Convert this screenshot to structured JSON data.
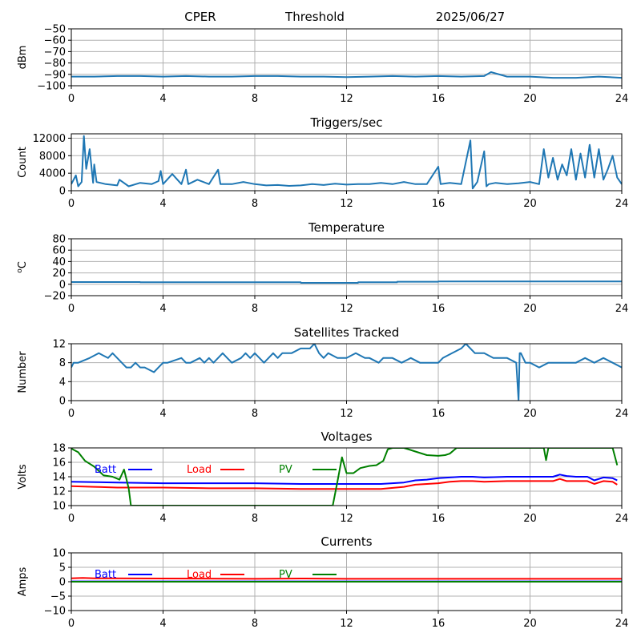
{
  "header": {
    "station": "CPER",
    "mode": "Threshold",
    "date": "2025/06/27"
  },
  "colors": {
    "line": "#1f77b4",
    "batt": "#0000ff",
    "load": "#ff0000",
    "pv": "#008000",
    "grid": "#b0b0b0"
  },
  "chart_data": [
    {
      "type": "line",
      "title": "",
      "ylabel": "dBm",
      "xlim": [
        0,
        24
      ],
      "ylim": [
        -100,
        -50
      ],
      "xticks": [
        0,
        4,
        8,
        12,
        16,
        20,
        24
      ],
      "yticks": [
        -100,
        -90,
        -80,
        -70,
        -60,
        -50
      ],
      "series": [
        {
          "x": [
            0,
            1,
            2,
            3,
            4,
            5,
            6,
            7,
            8,
            9,
            10,
            11,
            12,
            13,
            14,
            15,
            16,
            17,
            18,
            18.3,
            19,
            20,
            21,
            22,
            23,
            24
          ],
          "y": [
            -92,
            -92,
            -91.5,
            -91.5,
            -92,
            -91.5,
            -92,
            -92,
            -91.5,
            -91.5,
            -92,
            -92,
            -92.5,
            -92,
            -91.5,
            -92,
            -91.5,
            -92,
            -91.5,
            -88,
            -92,
            -92,
            -93,
            -93,
            -92,
            -93
          ]
        }
      ]
    },
    {
      "type": "line",
      "title": "Triggers/sec",
      "ylabel": "Count",
      "xlim": [
        0,
        24
      ],
      "ylim": [
        0,
        13000
      ],
      "xticks": [
        0,
        4,
        8,
        12,
        16,
        20,
        24
      ],
      "yticks": [
        0,
        4000,
        8000,
        12000
      ],
      "series": [
        {
          "x": [
            0,
            0.2,
            0.3,
            0.45,
            0.55,
            0.65,
            0.8,
            0.95,
            1.0,
            1.1,
            1.5,
            2.0,
            2.1,
            2.5,
            3.0,
            3.5,
            3.8,
            3.9,
            4.0,
            4.4,
            4.8,
            5.0,
            5.1,
            5.5,
            6.0,
            6.4,
            6.5,
            7.0,
            7.5,
            8.0,
            8.5,
            9.0,
            9.5,
            10.0,
            10.5,
            11.0,
            11.5,
            12.0,
            12.5,
            13.0,
            13.5,
            14.0,
            14.5,
            15.0,
            15.5,
            16.0,
            16.1,
            16.5,
            17.0,
            17.4,
            17.5,
            17.7,
            18.0,
            18.1,
            18.2,
            18.5,
            19.0,
            19.5,
            20.0,
            20.4,
            20.6,
            20.8,
            21.0,
            21.2,
            21.4,
            21.6,
            21.8,
            22.0,
            22.2,
            22.4,
            22.6,
            22.8,
            23.0,
            23.2,
            23.4,
            23.6,
            23.8,
            24.0
          ],
          "y": [
            1500,
            3500,
            1000,
            2000,
            12500,
            5000,
            9500,
            1800,
            6000,
            2000,
            1500,
            1200,
            2500,
            1000,
            1800,
            1500,
            2200,
            4500,
            1500,
            3800,
            1500,
            4800,
            1500,
            2500,
            1500,
            4800,
            1500,
            1500,
            2000,
            1500,
            1200,
            1300,
            1100,
            1200,
            1500,
            1300,
            1600,
            1400,
            1500,
            1500,
            1800,
            1500,
            2000,
            1500,
            1500,
            5500,
            1500,
            1800,
            1500,
            11500,
            500,
            2000,
            9000,
            1000,
            1500,
            1800,
            1500,
            1700,
            2000,
            1500,
            9500,
            3000,
            7500,
            2500,
            6000,
            3500,
            9500,
            2500,
            8500,
            3000,
            10500,
            3000,
            9500,
            2500,
            5000,
            8000,
            3000,
            1500
          ]
        }
      ]
    },
    {
      "type": "line",
      "title": "Temperature",
      "ylabel": "oC",
      "xlim": [
        0,
        24
      ],
      "ylim": [
        -20,
        80
      ],
      "xticks": [
        0,
        4,
        8,
        12,
        16,
        20,
        24
      ],
      "yticks": [
        -20,
        0,
        20,
        40,
        60,
        80
      ],
      "series": [
        {
          "x": [
            0,
            3,
            3.01,
            10,
            10.01,
            12.5,
            12.51,
            14.2,
            14.21,
            16,
            16.01,
            24
          ],
          "y": [
            4,
            4,
            3.5,
            3.5,
            2.5,
            2.5,
            3.5,
            3.5,
            4.5,
            4.5,
            5,
            5
          ]
        }
      ]
    },
    {
      "type": "line",
      "title": "Satellites Tracked",
      "ylabel": "Number",
      "xlim": [
        0,
        24
      ],
      "ylim": [
        0,
        12
      ],
      "xticks": [
        0,
        4,
        8,
        12,
        16,
        20,
        24
      ],
      "yticks": [
        0,
        4,
        8,
        12
      ],
      "series": [
        {
          "x": [
            0,
            0.1,
            0.3,
            0.8,
            1.2,
            1.6,
            1.8,
            2.0,
            2.2,
            2.4,
            2.6,
            2.8,
            3.0,
            3.2,
            3.6,
            3.8,
            4.0,
            4.2,
            4.8,
            5.0,
            5.2,
            5.6,
            5.8,
            6.0,
            6.2,
            6.6,
            6.8,
            7.0,
            7.4,
            7.6,
            7.8,
            8.0,
            8.4,
            8.8,
            9.0,
            9.2,
            9.6,
            10.0,
            10.4,
            10.6,
            10.8,
            11.0,
            11.2,
            11.6,
            12.0,
            12.4,
            12.8,
            13.0,
            13.4,
            13.6,
            14.0,
            14.4,
            14.8,
            15.2,
            15.6,
            16.0,
            16.2,
            16.6,
            17.0,
            17.2,
            17.6,
            18.0,
            18.4,
            19.0,
            19.4,
            19.5,
            19.55,
            19.6,
            19.8,
            20.0,
            20.4,
            20.8,
            21.2,
            21.6,
            22.0,
            22.4,
            22.8,
            23.2,
            23.6,
            24.0
          ],
          "y": [
            7,
            8,
            8,
            9,
            10,
            9,
            10,
            9,
            8,
            7,
            7,
            8,
            7,
            7,
            6,
            7,
            8,
            8,
            9,
            8,
            8,
            9,
            8,
            9,
            8,
            10,
            9,
            8,
            9,
            10,
            9,
            10,
            8,
            10,
            9,
            10,
            10,
            11,
            11,
            12,
            10,
            9,
            10,
            9,
            9,
            10,
            9,
            9,
            8,
            9,
            9,
            8,
            9,
            8,
            8,
            8,
            9,
            10,
            11,
            12,
            10,
            10,
            9,
            9,
            8,
            0,
            10,
            10,
            8,
            8,
            7,
            8,
            8,
            8,
            8,
            9,
            8,
            9,
            8,
            7
          ]
        }
      ]
    },
    {
      "type": "line",
      "title": "Voltages",
      "ylabel": "Volts",
      "xlim": [
        0,
        24
      ],
      "ylim": [
        10,
        18
      ],
      "xticks": [
        0,
        4,
        8,
        12,
        16,
        20,
        24
      ],
      "yticks": [
        10,
        12,
        14,
        16,
        18
      ],
      "legend": [
        "Batt",
        "Load",
        "PV"
      ],
      "series": [
        {
          "name": "Batt",
          "x": [
            0,
            2,
            4,
            6,
            8,
            10,
            12,
            13.5,
            14.5,
            15,
            15.5,
            16,
            16.5,
            17,
            17.5,
            18,
            19,
            20,
            21,
            21.3,
            21.6,
            22,
            22.5,
            22.8,
            23.2,
            23.6,
            23.8
          ],
          "y": [
            13.3,
            13.2,
            13.1,
            13.1,
            13.1,
            13.0,
            13.0,
            13.0,
            13.2,
            13.5,
            13.6,
            13.8,
            13.9,
            14.0,
            14.0,
            13.9,
            14.0,
            14.0,
            14.0,
            14.3,
            14.1,
            14.0,
            14.0,
            13.5,
            13.9,
            13.8,
            13.5
          ]
        },
        {
          "name": "Load",
          "x": [
            0,
            1,
            2,
            4,
            6,
            8,
            10,
            12,
            13.5,
            14.5,
            15,
            15.5,
            16,
            16.5,
            17,
            17.5,
            18,
            19,
            20,
            21,
            21.3,
            21.6,
            22,
            22.5,
            22.8,
            23.2,
            23.6,
            23.8
          ],
          "y": [
            12.7,
            12.6,
            12.5,
            12.5,
            12.4,
            12.4,
            12.3,
            12.3,
            12.3,
            12.6,
            12.9,
            13.0,
            13.1,
            13.3,
            13.4,
            13.4,
            13.3,
            13.4,
            13.4,
            13.4,
            13.7,
            13.4,
            13.4,
            13.4,
            13.0,
            13.4,
            13.3,
            12.9
          ]
        },
        {
          "name": "PV",
          "x": [
            0,
            0.3,
            0.6,
            1.0,
            1.4,
            1.8,
            2.1,
            2.3,
            2.5,
            2.6,
            11.4,
            11.6,
            11.8,
            12.0,
            12.3,
            12.6,
            13.0,
            13.3,
            13.6,
            13.8,
            14.0,
            14.5,
            15.0,
            15.5,
            16.0,
            16.3,
            16.5,
            16.8,
            20.6,
            20.7,
            20.8,
            23.6,
            23.8
          ],
          "y": [
            17.9,
            17.4,
            16.2,
            15.4,
            14.2,
            14.0,
            13.6,
            15.0,
            12.4,
            10.0,
            10.0,
            13.3,
            16.7,
            14.5,
            14.5,
            15.2,
            15.5,
            15.6,
            16.2,
            17.8,
            18.0,
            18.0,
            17.5,
            17.0,
            16.9,
            17.0,
            17.2,
            18.0,
            18.0,
            16.3,
            18.0,
            18.0,
            15.6
          ]
        }
      ]
    },
    {
      "type": "line",
      "title": "Currents",
      "ylabel": "Amps",
      "xlim": [
        0,
        24
      ],
      "ylim": [
        -10,
        10
      ],
      "xticks": [
        0,
        4,
        8,
        12,
        16,
        20,
        24
      ],
      "yticks": [
        -10,
        -5,
        0,
        5,
        10
      ],
      "legend": [
        "Batt",
        "Load",
        "PV"
      ],
      "series": [
        {
          "name": "Batt",
          "x": [
            0,
            24
          ],
          "y": [
            0.1,
            0.1
          ]
        },
        {
          "name": "Load",
          "x": [
            0,
            0.5,
            1,
            4,
            8,
            10,
            12,
            16,
            20,
            24
          ],
          "y": [
            1.2,
            1.3,
            1.2,
            1.1,
            1.0,
            1.1,
            1.0,
            1.0,
            1.0,
            1.0
          ]
        },
        {
          "name": "PV",
          "x": [
            0,
            24
          ],
          "y": [
            0.0,
            0.0
          ]
        }
      ]
    }
  ]
}
